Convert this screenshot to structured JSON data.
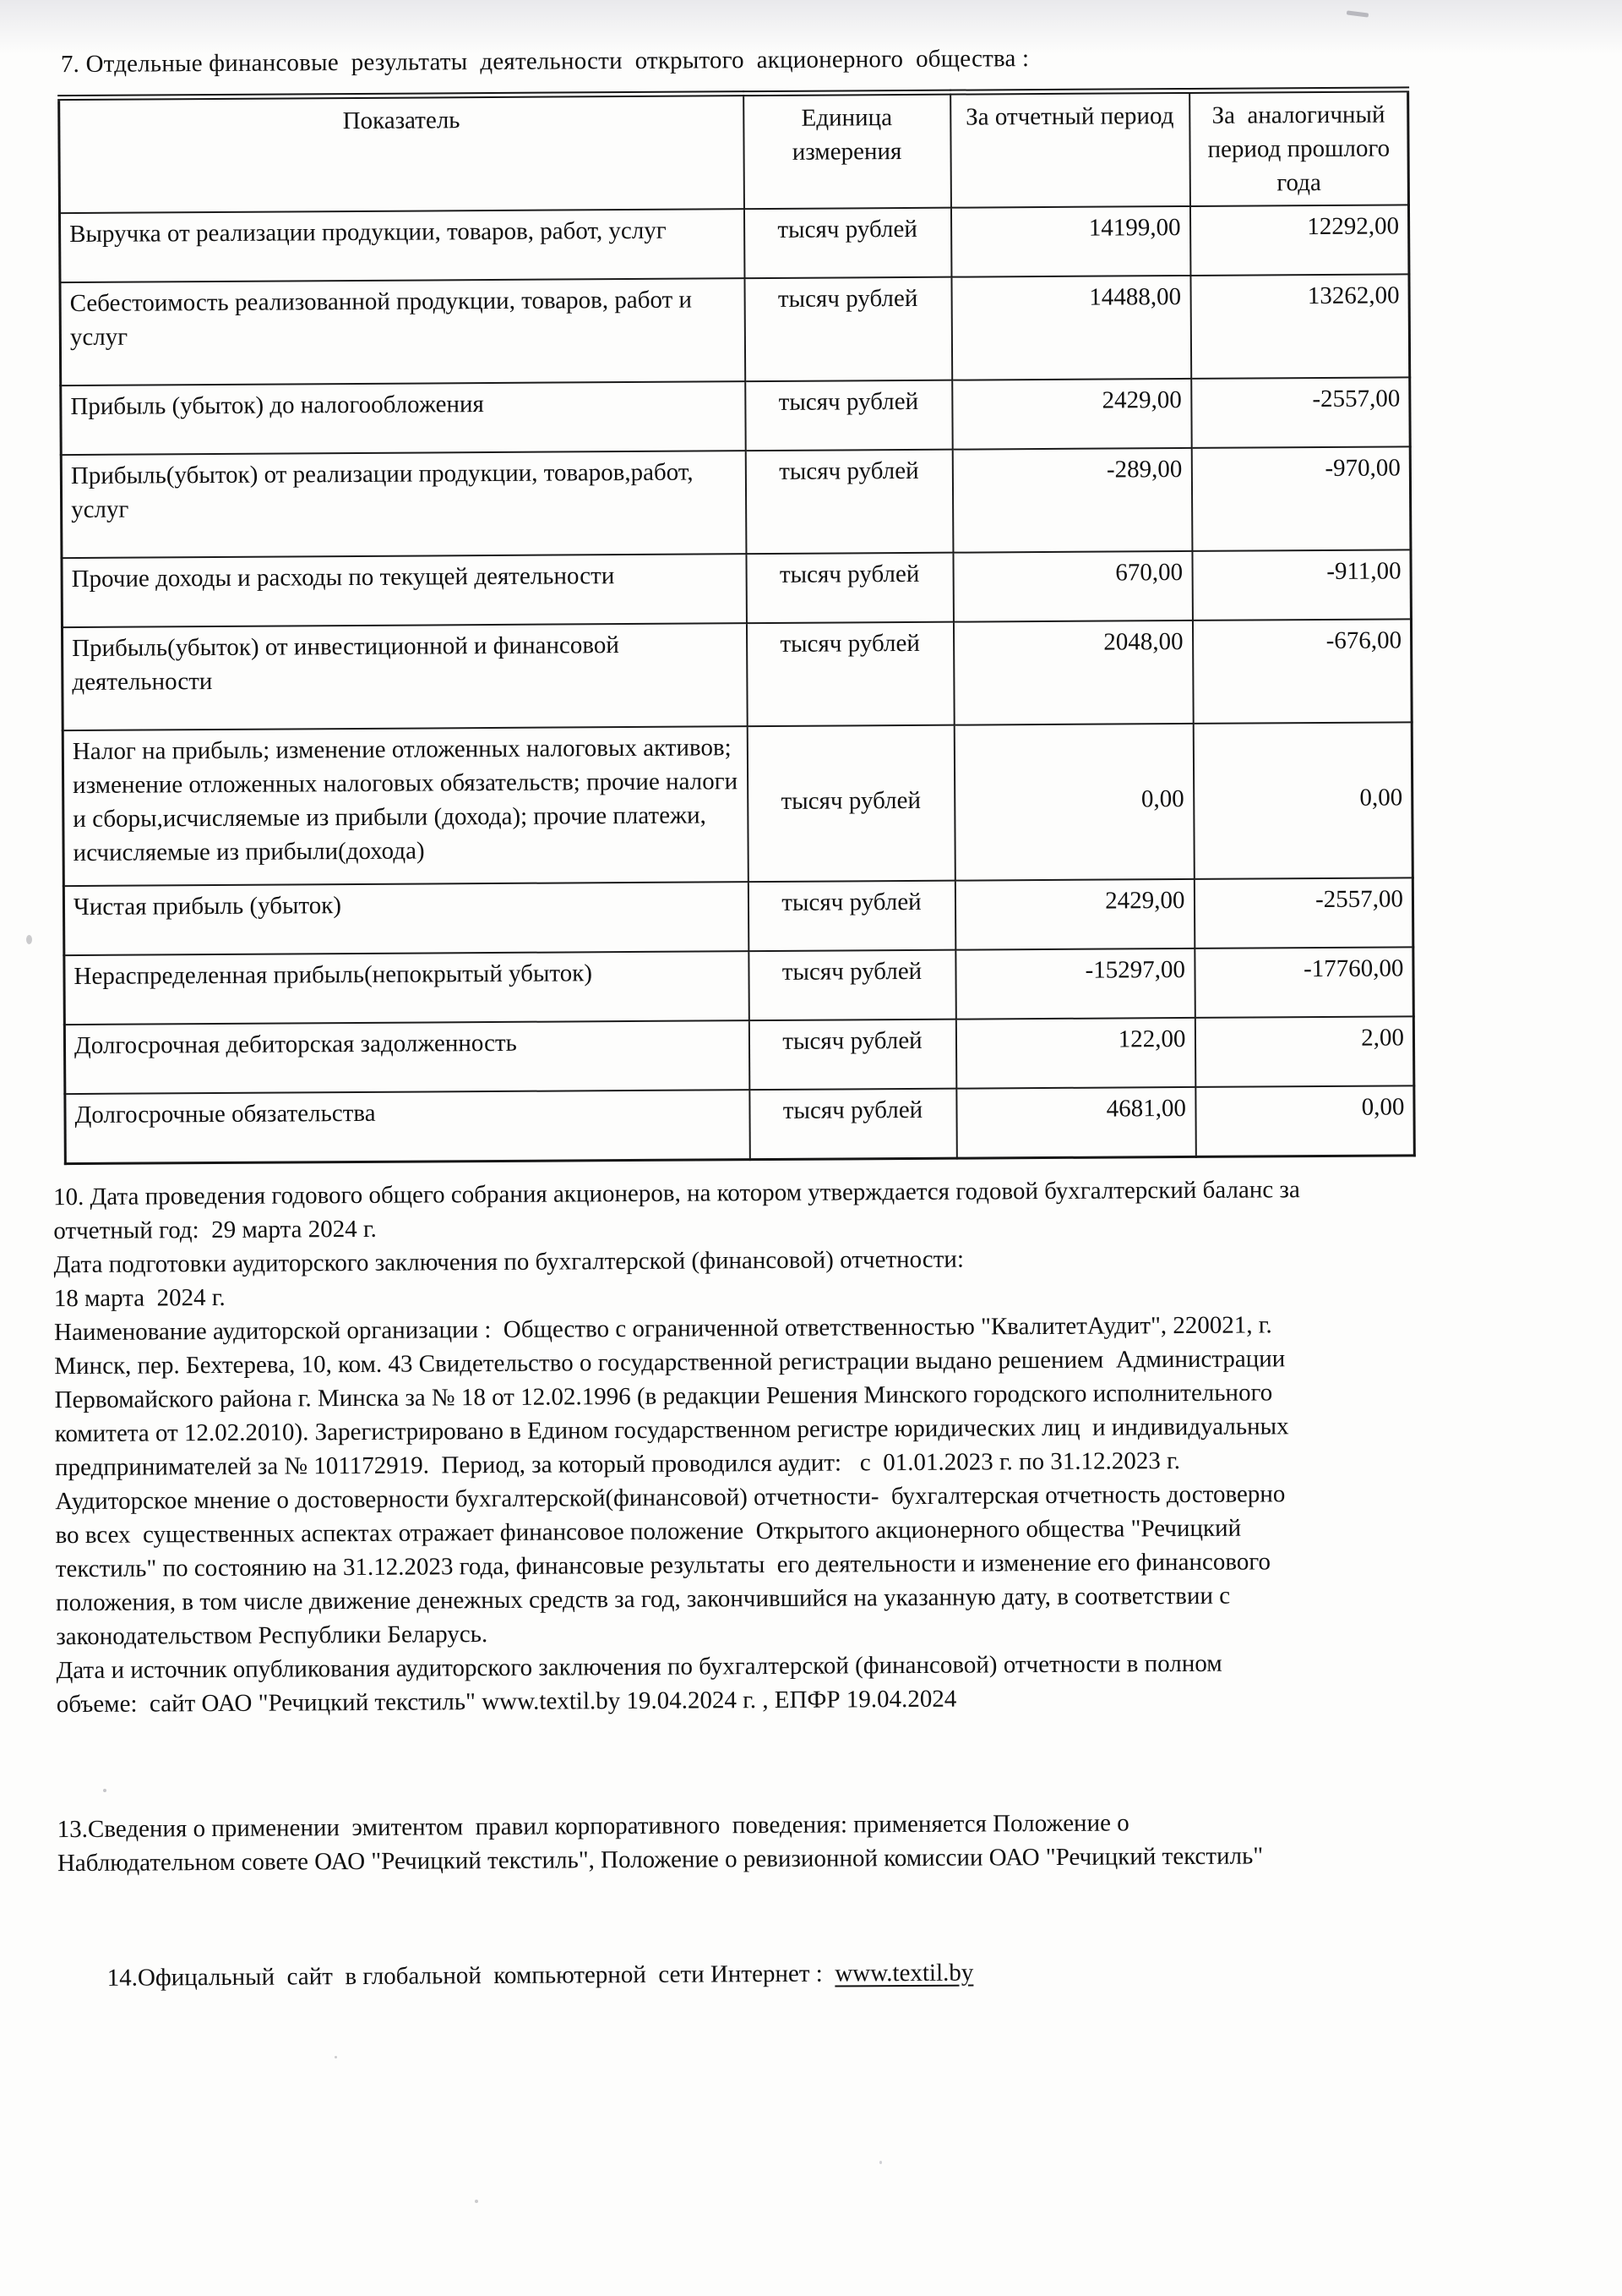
{
  "document": {
    "title": "7. Отдельные финансовые  результаты  деятельности  открытого  акционерного  общества :",
    "table": {
      "headers": {
        "indicator": "Показатель",
        "unit": "Единица измерения",
        "current": "За отчетный период",
        "previous": "За  аналогичный период прошлого года"
      },
      "rows": [
        {
          "indicator": "Выручка от реализации продукции, товаров, работ, услуг",
          "unit": "тысяч рублей",
          "current": "14199,00",
          "previous": "12292,00"
        },
        {
          "indicator": "Себестоимость реализованной продукции, товаров, работ и услуг",
          "unit": "тысяч рублей",
          "current": "14488,00",
          "previous": "13262,00"
        },
        {
          "indicator": "Прибыль (убыток) до налогообложения",
          "unit": "тысяч рублей",
          "current": "2429,00",
          "previous": "-2557,00"
        },
        {
          "indicator": "Прибыль(убыток) от реализации продукции, товаров,работ, услуг",
          "unit": "тысяч рублей",
          "current": "-289,00",
          "previous": "-970,00"
        },
        {
          "indicator": "Прочие доходы и расходы по текущей деятельности",
          "unit": "тысяч рублей",
          "current": "670,00",
          "previous": "-911,00"
        },
        {
          "indicator": "Прибыль(убыток) от инвестиционной и финансовой деятельности",
          "unit": "тысяч рублей",
          "current": "2048,00",
          "previous": "-676,00"
        },
        {
          "indicator": "Налог на прибыль; изменение отложенных налоговых активов; изменение отложенных налоговых обязательств; прочие налоги и сборы,исчисляемые из прибыли (дохода); прочие платежи, исчисляемые из прибыли(дохода)",
          "unit": "тысяч рублей",
          "current": "0,00",
          "previous": "0,00"
        },
        {
          "indicator": "Чистая прибыль (убыток)",
          "unit": "тысяч рублей",
          "current": "2429,00",
          "previous": "-2557,00"
        },
        {
          "indicator": "Нераспределенная прибыль(непокрытый убыток)",
          "unit": "тысяч рублей",
          "current": "-15297,00",
          "previous": "-17760,00"
        },
        {
          "indicator": "Долгосрочная дебиторская задолженность",
          "unit": "тысяч рублей",
          "current": "122,00",
          "previous": "2,00"
        },
        {
          "indicator": "Долгосрочные обязательства",
          "unit": "тысяч рублей",
          "current": "4681,00",
          "previous": "0,00"
        }
      ]
    },
    "paragraph10_lines": [
      "10. Дата проведения годового общего собрания акционеров, на котором утверждается годовой бухгалтерский баланс за",
      "отчетный год:  29 марта 2024 г.",
      "Дата подготовки аудиторского заключения по бухгалтерской (финансовой) отчетности:",
      "18 марта  2024 г.",
      "Наименование аудиторской организации :  Общество с ограниченной ответственностью \"КвалитетАудит\", 220021, г.",
      "Минск, пер. Бехтерева, 10, ком. 43 Свидетельство о государственной регистрации выдано решением  Администрации",
      "Первомайского района г. Минска за № 18 от 12.02.1996 (в редакции Решения Минского городского исполнительного",
      "комитета от 12.02.2010). Зарегистрировано в Едином государственном регистре юридических лиц  и индивидуальных",
      "предпринимателей за № 101172919.  Период, за который проводился аудит:   с  01.01.2023 г. по 31.12.2023 г.",
      "Аудиторское мнение о достоверности бухгалтерской(финансовой) отчетности-  бухгалтерская отчетность достоверно",
      "во всех  существенных аспектах отражает финансовое положение  Открытого акционерного общества \"Речицкий",
      "текстиль\" по состоянию на 31.12.2023 года, финансовые результаты  его деятельности и изменение его финансового",
      "положения, в том числе движение денежных средств за год, закончившийся на указанную дату, в соответствии с",
      "законодательством Республики Беларусь.",
      "Дата и источник опубликования аудиторского заключения по бухгалтерской (финансовой) отчетности в полном",
      "объеме:  сайт ОАО \"Речицкий текстиль\" www.textil.by 19.04.2024 г. , ЕПФР 19.04.2024"
    ],
    "paragraph13_lines": [
      "13.Сведения о применении  эмитентом  правил корпоративного  поведения: применяется Положение о",
      "Наблюдательном совете ОАО \"Речицкий текстиль\", Положение о ревизионной комиссии ОАО \"Речицкий текстиль\""
    ],
    "paragraph14": {
      "prefix": "14.Офицальный  сайт  в глобальной  компьютерной  сети Интернет :  ",
      "link": "www.textil.by"
    }
  }
}
